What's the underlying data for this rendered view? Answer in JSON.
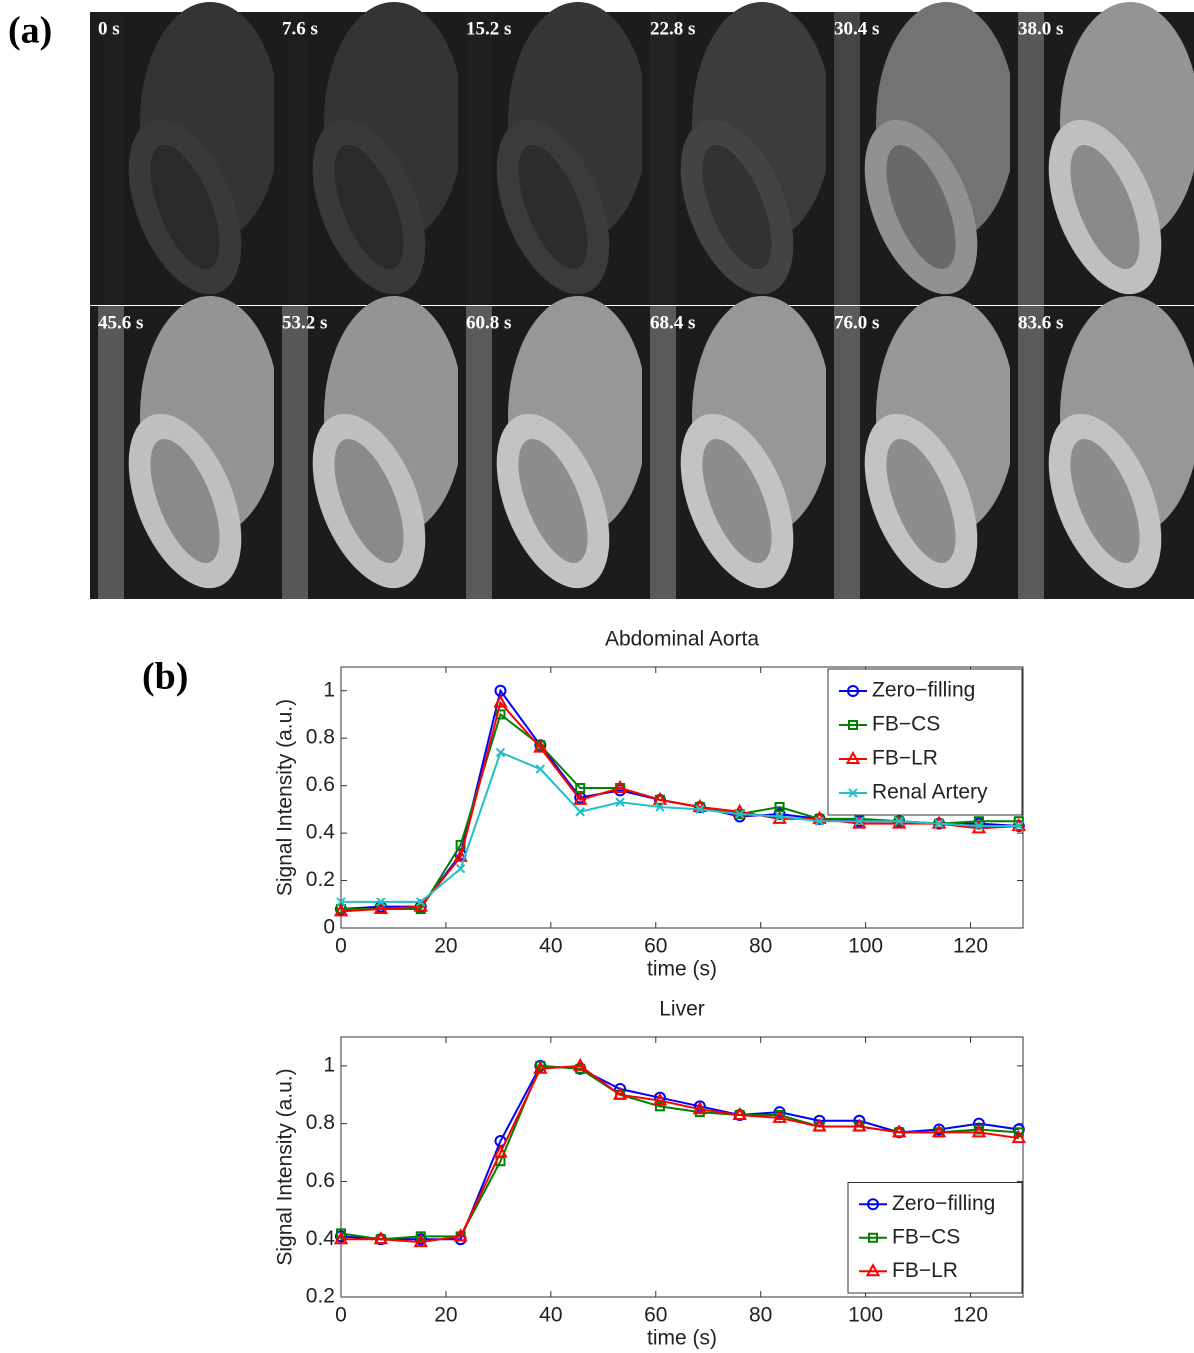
{
  "panel_a": {
    "label": "(a)",
    "frames": [
      "0 s",
      "7.6 s",
      "15.2 s",
      "22.8 s",
      "30.4 s",
      "38.0 s",
      "45.6 s",
      "53.2 s",
      "60.8 s",
      "68.4 s",
      "76.0 s",
      "83.6 s"
    ]
  },
  "panel_b": {
    "label": "(b)"
  },
  "chart_data": [
    {
      "type": "line",
      "title": "Abdominal Aorta",
      "xlabel": "time (s)",
      "ylabel": "Signal Intensity (a.u.)",
      "x": [
        0,
        7.6,
        15.2,
        22.8,
        30.4,
        38.0,
        45.6,
        53.2,
        60.8,
        68.4,
        76.0,
        83.6,
        91.2,
        98.8,
        106.4,
        114,
        121.6,
        129.2
      ],
      "xlim": [
        0,
        130
      ],
      "xticks": [
        0,
        20,
        40,
        60,
        80,
        100,
        120
      ],
      "ylim": [
        0,
        1.1
      ],
      "yticks": [
        0,
        0.2,
        0.4,
        0.6,
        0.8,
        1
      ],
      "legend": "upper right",
      "series": [
        {
          "name": "Zero−filling",
          "color": "#0000ff",
          "marker": "circle",
          "values": [
            0.08,
            0.09,
            0.09,
            0.31,
            1.0,
            0.77,
            0.55,
            0.58,
            0.54,
            0.51,
            0.47,
            0.48,
            0.46,
            0.45,
            0.45,
            0.44,
            0.44,
            0.43
          ]
        },
        {
          "name": "FB−CS",
          "color": "#008000",
          "marker": "square",
          "values": [
            0.08,
            0.08,
            0.08,
            0.35,
            0.9,
            0.77,
            0.59,
            0.59,
            0.54,
            0.51,
            0.48,
            0.51,
            0.46,
            0.46,
            0.45,
            0.44,
            0.45,
            0.45
          ]
        },
        {
          "name": "FB−LR",
          "color": "#ff0000",
          "marker": "triangle",
          "values": [
            0.07,
            0.08,
            0.09,
            0.3,
            0.95,
            0.76,
            0.54,
            0.59,
            0.54,
            0.51,
            0.49,
            0.46,
            0.46,
            0.44,
            0.44,
            0.44,
            0.42,
            0.43
          ]
        },
        {
          "name": "Renal Artery",
          "color": "#20c0c8",
          "marker": "x",
          "values": [
            0.11,
            0.11,
            0.11,
            0.25,
            0.74,
            0.67,
            0.49,
            0.53,
            0.51,
            0.5,
            0.48,
            0.47,
            0.45,
            0.45,
            0.45,
            0.44,
            0.43,
            0.43
          ]
        }
      ]
    },
    {
      "type": "line",
      "title": "Liver",
      "xlabel": "time (s)",
      "ylabel": "Signal Intensity (a.u.)",
      "x": [
        0,
        7.6,
        15.2,
        22.8,
        30.4,
        38.0,
        45.6,
        53.2,
        60.8,
        68.4,
        76.0,
        83.6,
        91.2,
        98.8,
        106.4,
        114,
        121.6,
        129.2
      ],
      "xlim": [
        0,
        130
      ],
      "xticks": [
        0,
        20,
        40,
        60,
        80,
        100,
        120
      ],
      "ylim": [
        0.2,
        1.1
      ],
      "yticks": [
        0.2,
        0.4,
        0.6,
        0.8,
        1
      ],
      "legend": "lower right",
      "series": [
        {
          "name": "Zero−filling",
          "color": "#0000ff",
          "marker": "circle",
          "values": [
            0.41,
            0.4,
            0.4,
            0.4,
            0.74,
            1.0,
            0.99,
            0.92,
            0.89,
            0.86,
            0.83,
            0.84,
            0.81,
            0.81,
            0.77,
            0.78,
            0.8,
            0.78
          ]
        },
        {
          "name": "FB−CS",
          "color": "#008000",
          "marker": "square",
          "values": [
            0.42,
            0.4,
            0.41,
            0.41,
            0.67,
            1.0,
            0.99,
            0.9,
            0.86,
            0.84,
            0.83,
            0.83,
            0.79,
            0.79,
            0.77,
            0.77,
            0.78,
            0.77
          ]
        },
        {
          "name": "FB−LR",
          "color": "#ff0000",
          "marker": "triangle",
          "values": [
            0.4,
            0.4,
            0.39,
            0.41,
            0.7,
            0.99,
            1.0,
            0.9,
            0.88,
            0.85,
            0.83,
            0.82,
            0.79,
            0.79,
            0.77,
            0.77,
            0.77,
            0.75
          ]
        }
      ]
    }
  ]
}
